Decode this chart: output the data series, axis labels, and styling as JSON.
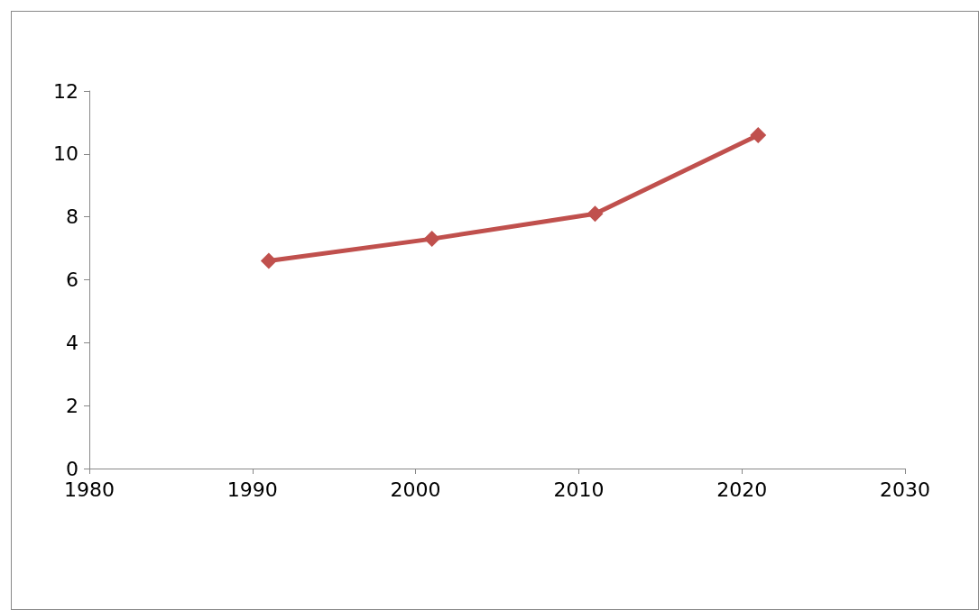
{
  "chart_data": {
    "type": "line",
    "x": [
      1991,
      2001,
      2011,
      2021
    ],
    "series": [
      {
        "color": "#c0504d",
        "values": [
          6.6,
          7.3,
          8.1,
          10.6
        ]
      }
    ],
    "xlim": [
      1980,
      2030
    ],
    "xticks": [
      1980,
      1990,
      2000,
      2010,
      2020,
      2030
    ],
    "ylim": [
      0,
      12
    ],
    "yticks": [
      0,
      2,
      4,
      6,
      8,
      10,
      12
    ],
    "grid": false,
    "marker": "diamond",
    "line_style": "solid"
  }
}
